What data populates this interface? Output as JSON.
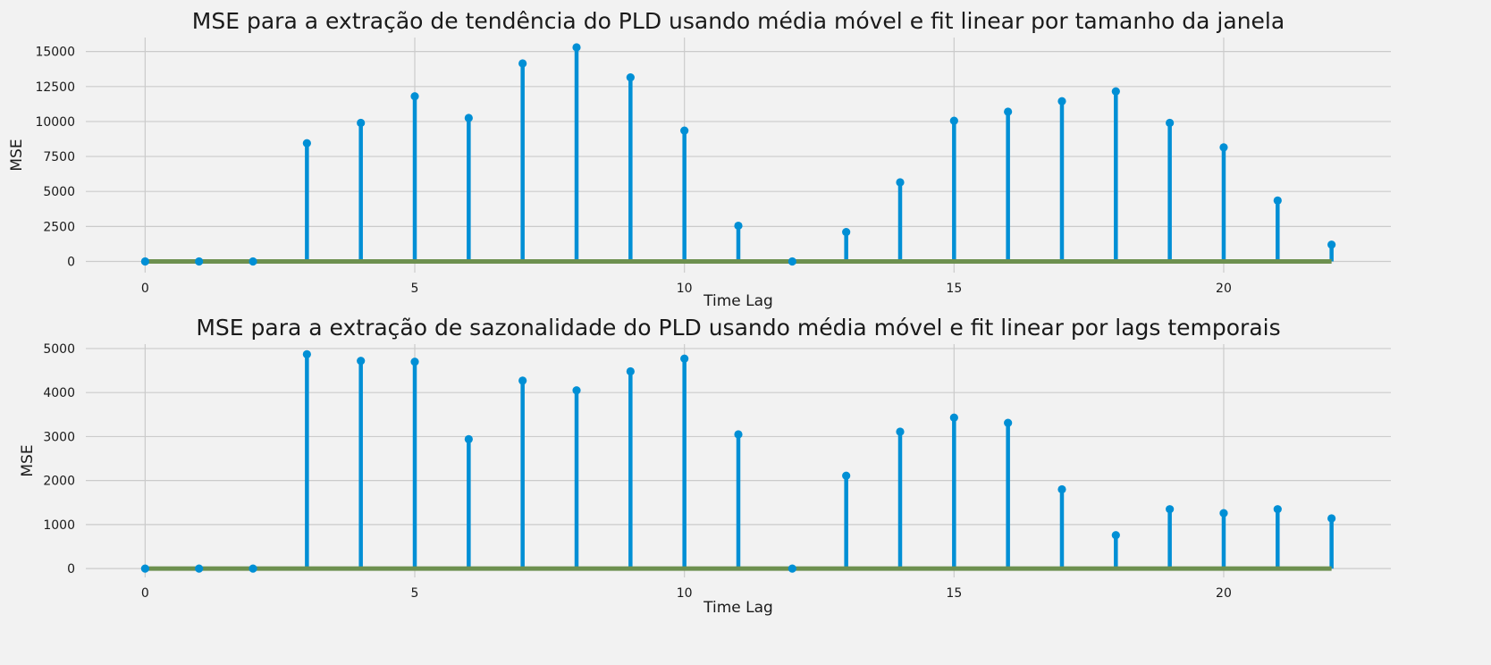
{
  "colors": {
    "background": "#f2f2f2",
    "stem": "#008fd5",
    "baseline": "#6d904f",
    "grid": "#cbcbcb"
  },
  "chart_data": [
    {
      "type": "stem",
      "title": "MSE para a extração de tendência do PLD usando média móvel e fit linear por tamanho da janela",
      "xlabel": "Time Lag",
      "ylabel": "MSE",
      "xlim": [
        -1.1,
        23.1
      ],
      "ylim": [
        -800,
        16000
      ],
      "xticks": [
        0,
        5,
        10,
        15,
        20
      ],
      "xtick_labels": [
        "0",
        "5",
        "10",
        "15",
        "20"
      ],
      "yticks": [
        0,
        2500,
        5000,
        7500,
        10000,
        12500,
        15000
      ],
      "ytick_labels": [
        "0",
        "2500",
        "5000",
        "7500",
        "10000",
        "12500",
        "15000"
      ],
      "grid": true,
      "x": [
        0,
        1,
        2,
        3,
        4,
        5,
        6,
        7,
        8,
        9,
        10,
        11,
        12,
        13,
        14,
        15,
        16,
        17,
        18,
        19,
        20,
        21,
        22
      ],
      "values": [
        0,
        0,
        0,
        8450,
        9900,
        11800,
        10250,
        14150,
        15300,
        13150,
        9350,
        2550,
        0,
        2100,
        5650,
        10050,
        10700,
        11450,
        12150,
        9900,
        8150,
        4350,
        1200
      ]
    },
    {
      "type": "stem",
      "title": "MSE para a extração de sazonalidade do PLD usando média móvel e fit linear por lags temporais",
      "xlabel": "Time Lag",
      "ylabel": "MSE",
      "xlim": [
        -1.1,
        23.1
      ],
      "ylim": [
        -200,
        5100
      ],
      "xticks": [
        0,
        5,
        10,
        15,
        20
      ],
      "xtick_labels": [
        "0",
        "5",
        "10",
        "15",
        "20"
      ],
      "yticks": [
        0,
        1000,
        2000,
        3000,
        4000,
        5000
      ],
      "ytick_labels": [
        "0",
        "1000",
        "2000",
        "3000",
        "4000",
        "5000"
      ],
      "grid": true,
      "x": [
        0,
        1,
        2,
        3,
        4,
        5,
        6,
        7,
        8,
        9,
        10,
        11,
        12,
        13,
        14,
        15,
        16,
        17,
        18,
        19,
        20,
        21,
        22
      ],
      "values": [
        0,
        0,
        0,
        4870,
        4720,
        4700,
        2940,
        4270,
        4050,
        4480,
        4770,
        3050,
        0,
        2110,
        3110,
        3430,
        3310,
        1800,
        760,
        1350,
        1260,
        1350,
        1140
      ]
    }
  ]
}
